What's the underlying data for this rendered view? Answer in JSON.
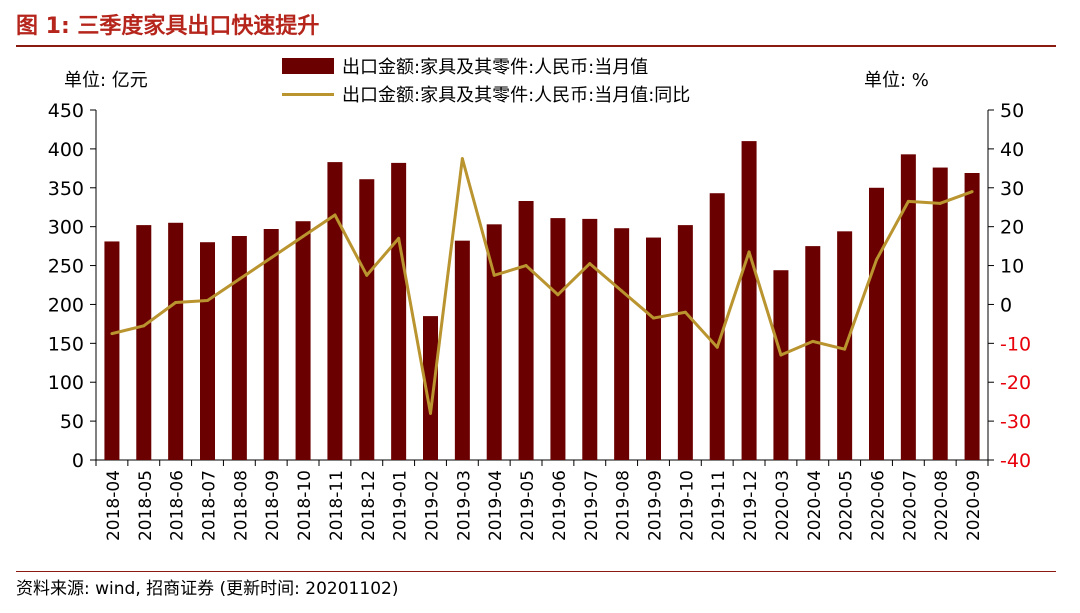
{
  "title": "图 1:  三季度家具出口快速提升",
  "left_unit": "单位: 亿元",
  "right_unit": "单位: %",
  "source": "资料来源: wind, 招商证券 (更新时间: 20201102)",
  "colors": {
    "bar": "#6b0000",
    "line": "#b9942f",
    "title": "#b5251c",
    "right_negative": "#e8000b"
  },
  "chart_data": {
    "type": "bar",
    "categories": [
      "2018-04",
      "2018-05",
      "2018-06",
      "2018-07",
      "2018-08",
      "2018-09",
      "2018-10",
      "2018-11",
      "2018-12",
      "2019-01",
      "2019-02",
      "2019-03",
      "2019-04",
      "2019-05",
      "2019-06",
      "2019-07",
      "2019-08",
      "2019-09",
      "2019-10",
      "2019-11",
      "2019-12",
      "2020-03",
      "2020-04",
      "2020-05",
      "2020-06",
      "2020-07",
      "2020-08",
      "2020-09"
    ],
    "series": [
      {
        "name": "出口金额:家具及其零件:人民币:当月值",
        "type": "bar",
        "axis": "left",
        "values": [
          281,
          302,
          305,
          280,
          288,
          297,
          307,
          383,
          361,
          382,
          185,
          282,
          303,
          333,
          311,
          310,
          298,
          286,
          302,
          343,
          410,
          244,
          275,
          294,
          350,
          393,
          376,
          369
        ]
      },
      {
        "name": "出口金额:家具及其零件:人民币:当月值:同比",
        "type": "line",
        "axis": "right",
        "values": [
          -7.5,
          -5.5,
          0.5,
          1.0,
          6.5,
          12.0,
          17.5,
          23.0,
          7.5,
          17.0,
          -28.0,
          37.5,
          7.5,
          10.0,
          2.5,
          10.5,
          3.5,
          -3.5,
          -2.0,
          -11.0,
          13.5,
          -13.0,
          -9.5,
          -11.5,
          11.5,
          26.5,
          26.0,
          29.0
        ]
      }
    ],
    "y_left": {
      "range": [
        0,
        450
      ],
      "ticks": [
        0,
        50,
        100,
        150,
        200,
        250,
        300,
        350,
        400,
        450
      ]
    },
    "y_right": {
      "range": [
        -40,
        50
      ],
      "ticks": [
        -40,
        -30,
        -20,
        -10,
        0,
        10,
        20,
        30,
        40,
        50
      ]
    },
    "grid": false,
    "legend_position": "top-center"
  }
}
